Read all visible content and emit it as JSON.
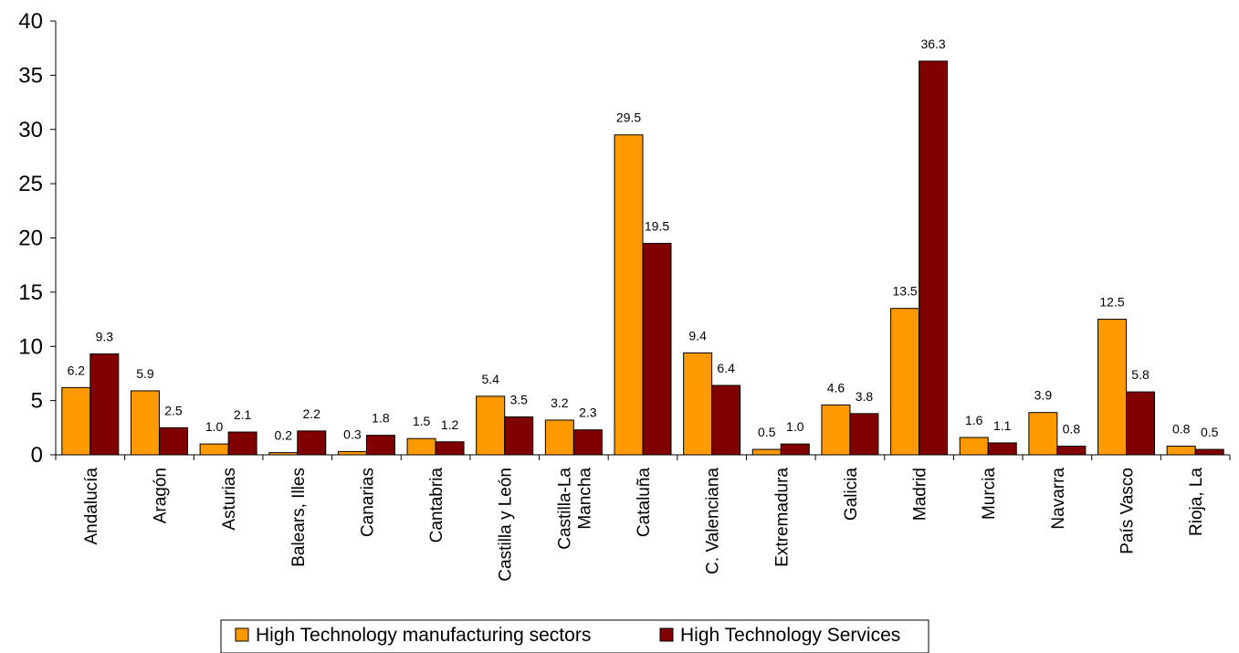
{
  "chart_data": {
    "type": "bar",
    "categories": [
      "Andalucía",
      "Aragón",
      "Asturias",
      "Balears, Illes",
      "Canarias",
      "Cantabria",
      "Castilla y León",
      "Castilla-La Mancha",
      "Cataluña",
      "C. Valenciana",
      "Extremadura",
      "Galicia",
      "Madrid",
      "Murcia",
      "Navarra",
      "País Vasco",
      "Rioja, La"
    ],
    "category_lines": [
      [
        "Andalucía"
      ],
      [
        "Aragón"
      ],
      [
        "Asturias"
      ],
      [
        "Balears, Illes"
      ],
      [
        "Canarias"
      ],
      [
        "Cantabria"
      ],
      [
        "Castilla y León"
      ],
      [
        "Castilla-La",
        "Mancha"
      ],
      [
        "Cataluña"
      ],
      [
        "C. Valenciana"
      ],
      [
        "Extremadura"
      ],
      [
        "Galicia"
      ],
      [
        "Madrid"
      ],
      [
        "Murcia"
      ],
      [
        "Navarra"
      ],
      [
        "País Vasco"
      ],
      [
        "Rioja, La"
      ]
    ],
    "series": [
      {
        "name": "High Technology manufacturing sectors",
        "color": "#FF9900",
        "values": [
          6.2,
          5.9,
          1.0,
          0.2,
          0.3,
          1.5,
          5.4,
          3.2,
          29.5,
          9.4,
          0.5,
          4.6,
          13.5,
          1.6,
          3.9,
          12.5,
          0.8
        ],
        "labels": [
          "6.2",
          "5.9",
          "1.0",
          "0.2",
          "0.3",
          "1.5",
          "5.4",
          "3.2",
          "29.5",
          "9.4",
          "0.5",
          "4.6",
          "13.5",
          "1.6",
          "3.9",
          "12.5",
          "0.8"
        ]
      },
      {
        "name": "High Technology Services",
        "color": "#800000",
        "values": [
          9.3,
          2.5,
          2.1,
          2.2,
          1.8,
          1.2,
          3.5,
          2.3,
          19.5,
          6.4,
          1.0,
          3.8,
          36.3,
          1.1,
          0.8,
          5.8,
          0.5
        ],
        "labels": [
          "9.3",
          "2.5",
          "2.1",
          "2.2",
          "1.8",
          "1.2",
          "3.5",
          "2.3",
          "19.5",
          "6.4",
          "1.0",
          "3.8",
          "36.3",
          "1.1",
          "0.8",
          "5.8",
          "0.5"
        ]
      }
    ],
    "yticks": [
      0,
      5,
      10,
      15,
      20,
      25,
      30,
      35,
      40
    ],
    "ylim": [
      0,
      40
    ],
    "grid": false,
    "legend_position": "bottom",
    "title": "",
    "xlabel": "",
    "ylabel": ""
  }
}
